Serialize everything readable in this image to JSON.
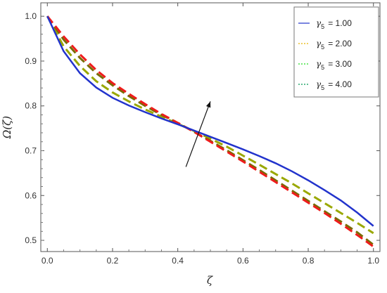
{
  "chart_data": {
    "type": "line",
    "title": "",
    "xlabel": "ζ",
    "ylabel": "Ω(ζ)",
    "xlim": [
      -0.02,
      1.02
    ],
    "ylim": [
      0.475,
      1.03
    ],
    "xticks": [
      "0.0",
      "0.2",
      "0.4",
      "0.6",
      "0.8",
      "1.0"
    ],
    "yticks": [
      "0.5",
      "0.6",
      "0.7",
      "0.8",
      "0.9",
      "1.0"
    ],
    "grid": false,
    "legend_position": "top-right",
    "legend_symbol": "γ",
    "legend_subscript": "5",
    "annotation": "arrow pointing up-right: increasing γ5",
    "x": [
      0.0,
      0.05,
      0.1,
      0.15,
      0.2,
      0.25,
      0.3,
      0.35,
      0.4,
      0.45,
      0.5,
      0.55,
      0.6,
      0.65,
      0.7,
      0.75,
      0.8,
      0.85,
      0.9,
      0.95,
      1.0
    ],
    "series": [
      {
        "name": "= 1.00",
        "color": "#2233cc",
        "dash": "solid",
        "values": [
          1.0,
          0.922,
          0.873,
          0.841,
          0.818,
          0.801,
          0.786,
          0.772,
          0.759,
          0.745,
          0.731,
          0.717,
          0.703,
          0.688,
          0.672,
          0.654,
          0.634,
          0.612,
          0.589,
          0.562,
          0.532
        ]
      },
      {
        "name": "= 2.00",
        "color": "#e8b400",
        "dash": "dashed",
        "values": [
          1.0,
          0.933,
          0.889,
          0.855,
          0.83,
          0.81,
          0.792,
          0.776,
          0.76,
          0.744,
          0.727,
          0.709,
          0.689,
          0.669,
          0.648,
          0.627,
          0.605,
          0.583,
          0.561,
          0.539,
          0.516
        ]
      },
      {
        "name": "= 3.00",
        "color": "#22dd22",
        "dash": "dashed",
        "values": [
          1.0,
          0.941,
          0.898,
          0.864,
          0.837,
          0.815,
          0.796,
          0.778,
          0.761,
          0.743,
          0.724,
          0.705,
          0.684,
          0.663,
          0.641,
          0.619,
          0.596,
          0.574,
          0.551,
          0.528,
          0.505
        ]
      },
      {
        "name": "= 4.00",
        "color": "#009955",
        "dash": "dashed",
        "values": [
          1.0,
          0.948,
          0.907,
          0.873,
          0.846,
          0.822,
          0.8,
          0.78,
          0.762,
          0.742,
          0.722,
          0.701,
          0.679,
          0.657,
          0.634,
          0.611,
          0.588,
          0.565,
          0.542,
          0.518,
          0.494
        ]
      }
    ],
    "overlay_series": [
      {
        "color": "#9aa800",
        "dash": "dashed",
        "values": [
          1.0,
          0.933,
          0.889,
          0.855,
          0.83,
          0.81,
          0.792,
          0.776,
          0.76,
          0.744,
          0.727,
          0.709,
          0.689,
          0.669,
          0.648,
          0.627,
          0.605,
          0.583,
          0.561,
          0.539,
          0.516
        ]
      },
      {
        "color": "#7a6a00",
        "dash": "dashed",
        "values": [
          1.0,
          0.948,
          0.907,
          0.873,
          0.846,
          0.822,
          0.8,
          0.78,
          0.762,
          0.742,
          0.722,
          0.701,
          0.679,
          0.657,
          0.634,
          0.611,
          0.588,
          0.565,
          0.542,
          0.518,
          0.49
        ]
      },
      {
        "color": "#ee1c1c",
        "dash": "dashed",
        "values": [
          1.0,
          0.955,
          0.915,
          0.88,
          0.851,
          0.827,
          0.804,
          0.782,
          0.762,
          0.742,
          0.72,
          0.698,
          0.676,
          0.653,
          0.63,
          0.607,
          0.584,
          0.561,
          0.537,
          0.512,
          0.486
        ]
      }
    ]
  }
}
